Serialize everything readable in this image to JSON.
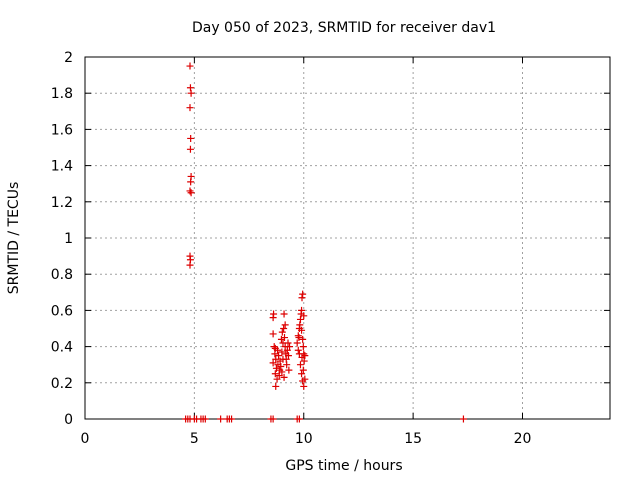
{
  "chart_data": {
    "type": "scatter",
    "title": "Day 050 of 2023, SRMTID for receiver dav1",
    "xlabel": "GPS time / hours",
    "ylabel": "SRMTID / TECUs",
    "xlim": [
      0,
      24
    ],
    "ylim": [
      0,
      2
    ],
    "x_ticks": [
      0,
      5,
      10,
      15,
      20
    ],
    "x_tick_labels": [
      "0",
      "5",
      "10",
      "15",
      "20"
    ],
    "y_ticks": [
      0,
      0.2,
      0.4,
      0.6,
      0.8,
      1,
      1.2,
      1.4,
      1.6,
      1.8,
      2
    ],
    "y_tick_labels": [
      "0",
      "0.2",
      "0.4",
      "0.6",
      "0.8",
      "1",
      "1.2",
      "1.4",
      "1.6",
      "1.8",
      "2"
    ],
    "grid": true,
    "marker": "+",
    "marker_color": "#dd0000",
    "points": [
      [
        4.8,
        1.95
      ],
      [
        4.82,
        1.83
      ],
      [
        4.85,
        1.8
      ],
      [
        4.8,
        1.72
      ],
      [
        4.83,
        1.55
      ],
      [
        4.82,
        1.49
      ],
      [
        4.85,
        1.34
      ],
      [
        4.83,
        1.31
      ],
      [
        4.8,
        1.26
      ],
      [
        4.85,
        1.25
      ],
      [
        4.8,
        0.9
      ],
      [
        4.82,
        0.88
      ],
      [
        4.8,
        0.85
      ],
      [
        4.6,
        0.0
      ],
      [
        4.7,
        0.0
      ],
      [
        4.8,
        0.0
      ],
      [
        5.0,
        0.0
      ],
      [
        5.1,
        0.0
      ],
      [
        5.3,
        0.0
      ],
      [
        5.4,
        0.0
      ],
      [
        5.5,
        0.0
      ],
      [
        6.2,
        0.0
      ],
      [
        6.5,
        0.0
      ],
      [
        6.6,
        0.0
      ],
      [
        6.7,
        0.0
      ],
      [
        8.5,
        0.0
      ],
      [
        8.6,
        0.0
      ],
      [
        9.7,
        0.0
      ],
      [
        9.8,
        0.0
      ],
      [
        17.3,
        0.0
      ],
      [
        8.6,
        0.56
      ],
      [
        8.62,
        0.58
      ],
      [
        8.6,
        0.47
      ],
      [
        8.65,
        0.4
      ],
      [
        8.7,
        0.39
      ],
      [
        8.68,
        0.36
      ],
      [
        8.72,
        0.33
      ],
      [
        8.6,
        0.31
      ],
      [
        8.75,
        0.28
      ],
      [
        8.7,
        0.25
      ],
      [
        8.78,
        0.22
      ],
      [
        8.72,
        0.18
      ],
      [
        8.8,
        0.38
      ],
      [
        8.85,
        0.35
      ],
      [
        8.82,
        0.3
      ],
      [
        8.9,
        0.27
      ],
      [
        8.88,
        0.24
      ],
      [
        8.92,
        0.32
      ],
      [
        8.95,
        0.29
      ],
      [
        9.0,
        0.37
      ],
      [
        9.05,
        0.42
      ],
      [
        9.02,
        0.48
      ],
      [
        9.08,
        0.5
      ],
      [
        9.1,
        0.58
      ],
      [
        9.12,
        0.45
      ],
      [
        9.15,
        0.4
      ],
      [
        9.18,
        0.36
      ],
      [
        9.2,
        0.33
      ],
      [
        9.22,
        0.3
      ],
      [
        9.0,
        0.26
      ],
      [
        9.1,
        0.23
      ],
      [
        9.25,
        0.38
      ],
      [
        9.3,
        0.35
      ],
      [
        9.28,
        0.42
      ],
      [
        9.35,
        0.4
      ],
      [
        9.32,
        0.27
      ],
      [
        9.05,
        0.33
      ],
      [
        8.98,
        0.44
      ],
      [
        9.15,
        0.52
      ],
      [
        9.7,
        0.42
      ],
      [
        9.75,
        0.38
      ],
      [
        9.78,
        0.45
      ],
      [
        9.8,
        0.5
      ],
      [
        9.82,
        0.52
      ],
      [
        9.85,
        0.55
      ],
      [
        9.88,
        0.58
      ],
      [
        9.9,
        0.6
      ],
      [
        9.92,
        0.67
      ],
      [
        9.95,
        0.69
      ],
      [
        9.9,
        0.49
      ],
      [
        9.95,
        0.44
      ],
      [
        9.98,
        0.4
      ],
      [
        10.0,
        0.36
      ],
      [
        10.02,
        0.32
      ],
      [
        9.85,
        0.3
      ],
      [
        9.9,
        0.25
      ],
      [
        9.95,
        0.21
      ],
      [
        10.0,
        0.18
      ],
      [
        10.05,
        0.35
      ],
      [
        9.92,
        0.34
      ],
      [
        10.0,
        0.57
      ],
      [
        9.8,
        0.36
      ],
      [
        9.75,
        0.46
      ],
      [
        10.05,
        0.22
      ],
      [
        9.98,
        0.27
      ]
    ]
  }
}
